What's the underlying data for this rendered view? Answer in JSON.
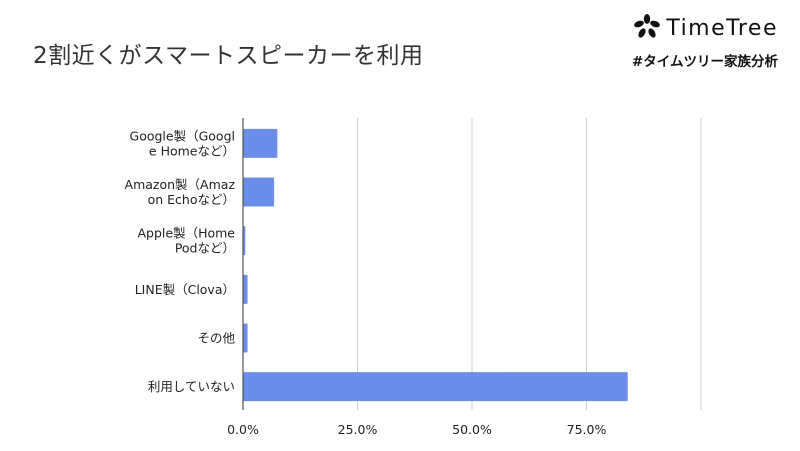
{
  "slide": {
    "title": "2割近くがスマートスピーカーを利用"
  },
  "brand": {
    "name": "TimeTree",
    "hashtag": "#タイムツリー家族分析",
    "logo_icon": "flower-logo-icon"
  },
  "colors": {
    "bar": "#6B8FE8",
    "grid": "#cfcfcf",
    "axis": "#555555"
  },
  "chart_data": {
    "type": "bar",
    "orientation": "horizontal",
    "categories": [
      [
        "Google製（Googl",
        "e Homeなど）"
      ],
      [
        "Amazon製（Amaz",
        "on Echoなど）"
      ],
      [
        "Apple製（Home",
        "Podなど）"
      ],
      [
        "LINE製（Clova）"
      ],
      [
        "その他"
      ],
      [
        "利用していない"
      ]
    ],
    "values": [
      7.5,
      6.8,
      0.5,
      1.0,
      1.0,
      84.0
    ],
    "xlim": [
      0,
      100
    ],
    "xticks": [
      0,
      25,
      50,
      75,
      100
    ],
    "xtick_labels": [
      "0.0%",
      "25.0%",
      "50.0%",
      "75.0%",
      ""
    ],
    "grid": true,
    "title": "",
    "xlabel": "",
    "ylabel": ""
  }
}
